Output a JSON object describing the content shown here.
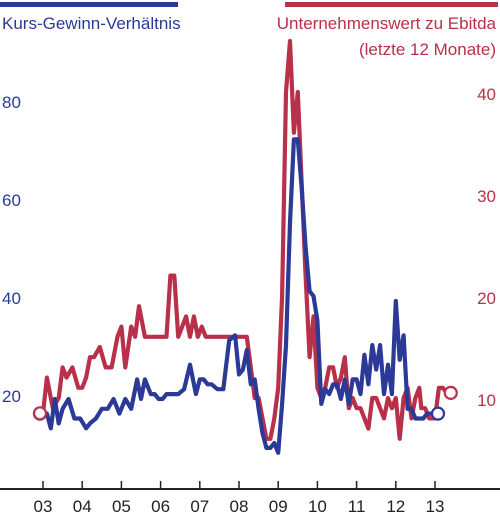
{
  "chart_data": {
    "type": "line",
    "left_title": "Kurs-Gewinn-Verhältnis",
    "right_title_line1": "Unternehmenswert zu Ebitda",
    "right_title_line2": "(letzte 12 Monate)",
    "x_ticks": [
      "03",
      "04",
      "05",
      "06",
      "07",
      "08",
      "09",
      "10",
      "11",
      "12",
      "13"
    ],
    "xlim": [
      2003,
      2014.7
    ],
    "y_left": {
      "ticks": [
        20,
        40,
        60,
        80
      ],
      "ylim": [
        0,
        90
      ]
    },
    "y_right": {
      "ticks": [
        10,
        20,
        30,
        40
      ],
      "ylim": [
        0,
        45
      ]
    },
    "colors": {
      "left": "#2b3a97",
      "right": "#b8304a"
    },
    "series": [
      {
        "axis": "left",
        "x": [
          2003.0,
          2003.1,
          2003.2,
          2003.3,
          2003.4,
          2003.5,
          2003.65,
          2003.8,
          2003.95,
          2004.1,
          2004.2,
          2004.35,
          2004.5,
          2004.65,
          2004.8,
          2004.95,
          2005.1,
          2005.25,
          2005.4,
          2005.5,
          2005.6,
          2005.75,
          2005.85,
          2005.95,
          2006.05,
          2006.15,
          2006.3,
          2006.45,
          2006.6,
          2006.75,
          2006.9,
          2007.0,
          2007.1,
          2007.2,
          2007.3,
          2007.45,
          2007.6,
          2007.75,
          2007.9,
          2008.0,
          2008.1,
          2008.2,
          2008.3,
          2008.4,
          2008.5,
          2008.6,
          2008.7,
          2008.8,
          2008.9,
          2009.0,
          2009.1,
          2009.2,
          2009.3,
          2009.4,
          2009.5,
          2009.6,
          2009.7,
          2009.8,
          2009.9,
          2010.0,
          2010.1,
          2010.2,
          2010.3,
          2010.4,
          2010.5,
          2010.6,
          2010.7,
          2010.8,
          2010.9,
          2011.0,
          2011.1,
          2011.2,
          2011.3,
          2011.4,
          2011.5,
          2011.6,
          2011.7,
          2011.8,
          2011.9,
          2012.0,
          2012.1,
          2012.2,
          2012.3,
          2012.4,
          2012.5,
          2012.6,
          2012.7,
          2012.8,
          2012.9,
          2013.0
        ],
        "values": [
          16,
          16,
          13,
          19,
          14,
          17,
          19,
          15,
          15,
          13,
          14,
          15,
          17,
          17,
          19,
          16,
          19,
          17,
          23,
          19,
          23,
          20,
          20,
          19,
          19,
          20,
          20,
          20,
          21,
          26,
          20,
          23,
          23,
          22,
          22,
          21,
          21,
          31,
          32,
          24,
          25,
          29,
          22,
          23,
          17,
          12,
          9,
          9,
          10,
          8,
          18,
          30,
          55,
          72,
          72,
          62,
          50,
          41,
          40,
          35,
          18,
          21,
          20,
          22,
          22,
          19,
          23,
          18,
          23,
          23,
          20,
          28,
          22,
          30,
          25,
          30,
          20,
          26,
          20,
          39,
          27,
          32,
          17,
          17,
          15,
          15,
          15,
          16,
          16,
          16
        ],
        "end_marker": 16
      },
      {
        "axis": "right",
        "x": [
          2003.0,
          2003.1,
          2003.25,
          2003.4,
          2003.5,
          2003.6,
          2003.75,
          2003.9,
          2004.0,
          2004.1,
          2004.2,
          2004.3,
          2004.45,
          2004.6,
          2004.75,
          2004.9,
          2005.0,
          2005.1,
          2005.25,
          2005.35,
          2005.45,
          2005.6,
          2005.75,
          2005.85,
          2005.95,
          2006.05,
          2006.15,
          2006.25,
          2006.35,
          2006.45,
          2006.55,
          2006.65,
          2006.75,
          2006.85,
          2006.95,
          2007.05,
          2007.15,
          2007.3,
          2007.5,
          2007.7,
          2007.9,
          2008.0,
          2008.1,
          2008.2,
          2008.3,
          2008.4,
          2008.5,
          2008.6,
          2008.7,
          2008.8,
          2008.9,
          2009.0,
          2009.1,
          2009.2,
          2009.3,
          2009.4,
          2009.5,
          2009.6,
          2009.7,
          2009.8,
          2009.9,
          2010.0,
          2010.1,
          2010.2,
          2010.3,
          2010.4,
          2010.5,
          2010.6,
          2010.7,
          2010.8,
          2010.9,
          2011.0,
          2011.1,
          2011.2,
          2011.3,
          2011.4,
          2011.5,
          2011.6,
          2011.7,
          2011.8,
          2011.9,
          2012.0,
          2012.1,
          2012.2,
          2012.3,
          2012.4,
          2012.5,
          2012.6,
          2012.65,
          2012.75,
          2012.85,
          2012.95,
          2013.0,
          2013.1,
          2013.2,
          2013.3
        ],
        "values": [
          8.5,
          12,
          9,
          10,
          13,
          12,
          13,
          11,
          11,
          12,
          14,
          14,
          15,
          13,
          13,
          16,
          17,
          13,
          17,
          16,
          19,
          16,
          16,
          16,
          16,
          16,
          16,
          22,
          22,
          16,
          17,
          18,
          16,
          18,
          16,
          17,
          16,
          16,
          16,
          16,
          16,
          16,
          16,
          16,
          13,
          10,
          10,
          8,
          6,
          6,
          8,
          11,
          20,
          40,
          45,
          36,
          40,
          31,
          22,
          14,
          18,
          11,
          10,
          11,
          13,
          13,
          11,
          12,
          14,
          9,
          10,
          9,
          9,
          8,
          7,
          10,
          10,
          9,
          8,
          10,
          9,
          10,
          6,
          10,
          11,
          8,
          10,
          11,
          9,
          9,
          8,
          8,
          8,
          11,
          11,
          10.5
        ],
        "end_marker": 10.5
      }
    ]
  }
}
